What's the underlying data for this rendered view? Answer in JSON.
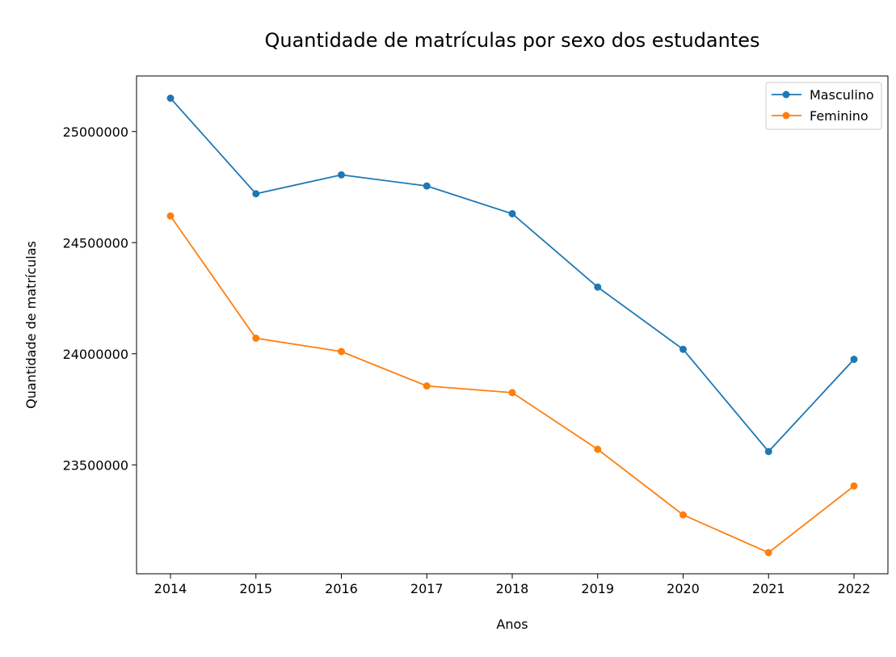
{
  "chart_data": {
    "type": "line",
    "title": "Quantidade de matrículas por sexo dos estudantes",
    "xlabel": "Anos",
    "ylabel": "Quantidade de matrículas",
    "x": [
      "2014",
      "2015",
      "2016",
      "2017",
      "2018",
      "2019",
      "2020",
      "2021",
      "2022"
    ],
    "yticks": [
      "23500000",
      "24000000",
      "24500000",
      "25000000"
    ],
    "ytick_values": [
      23500000,
      24000000,
      24500000,
      25000000
    ],
    "ylim": [
      23010000,
      25250000
    ],
    "grid": false,
    "legend": "top-right",
    "series": [
      {
        "name": "Masculino",
        "color": "#1f77b4",
        "values": [
          25150000,
          24720000,
          24805000,
          24755000,
          24630000,
          24300000,
          24020000,
          23560000,
          23975000
        ]
      },
      {
        "name": "Feminino",
        "color": "#ff7f0e",
        "values": [
          24620000,
          24070000,
          24010000,
          23855000,
          23825000,
          23570000,
          23275000,
          23105000,
          23405000
        ]
      }
    ]
  }
}
